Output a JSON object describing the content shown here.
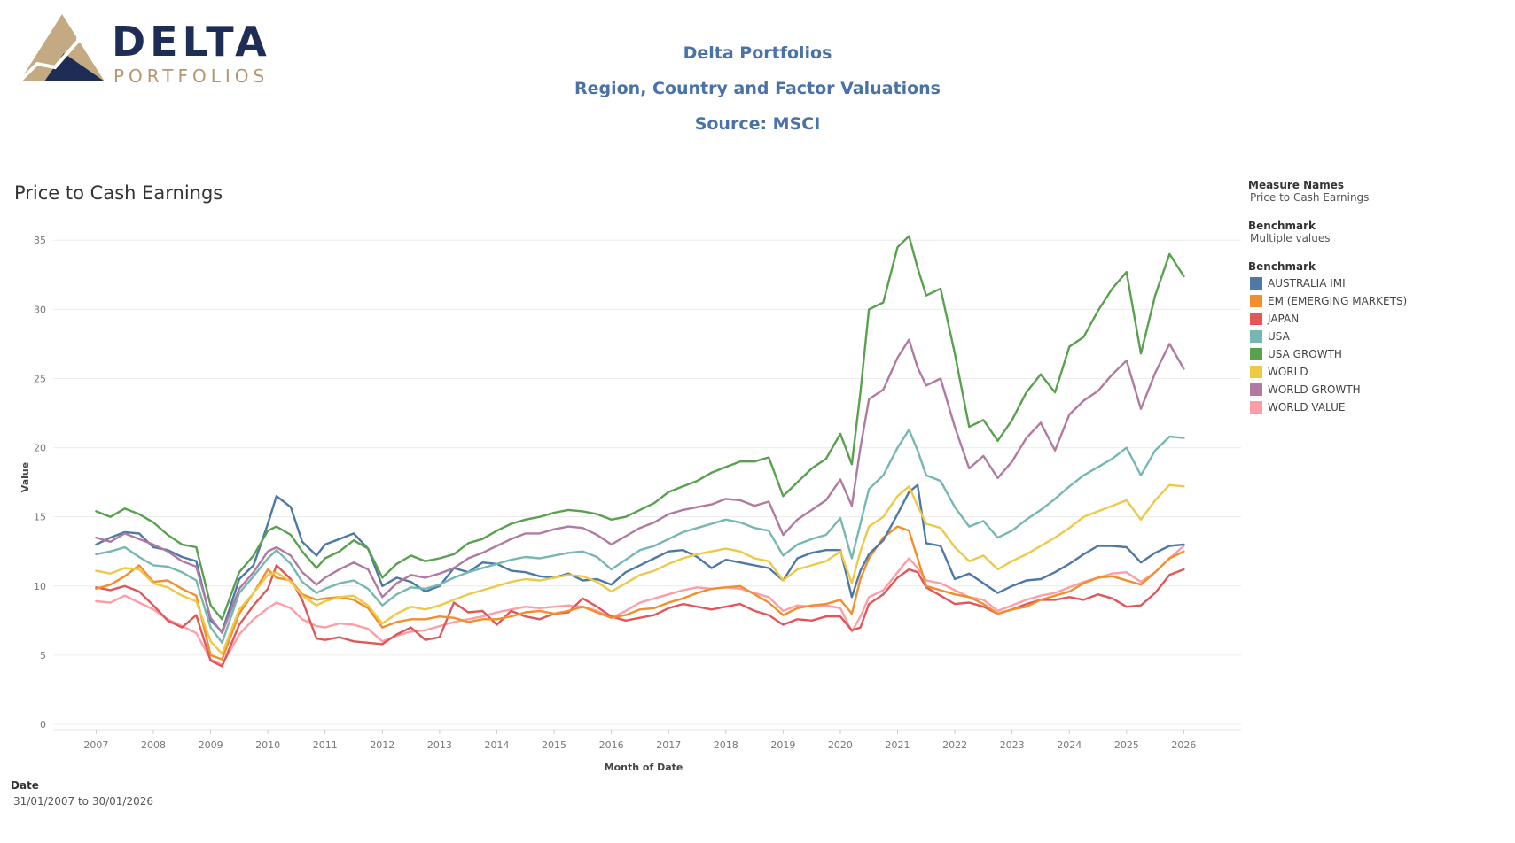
{
  "logo": {
    "word": "DELTA",
    "sub": "PORTFOLIOS"
  },
  "header": {
    "line1": "Delta Portfolios",
    "line2": "Region, Country and Factor Valuations",
    "line3": "Source: MSCI"
  },
  "legend": {
    "measure_names_label": "Measure Names",
    "measure_names_value": "Price to Cash Earnings",
    "benchmark_label": "Benchmark",
    "benchmark_value": "Multiple values",
    "benchmark_list_label": "Benchmark"
  },
  "date_filter": {
    "label": "Date",
    "value": "31/01/2007 to 30/01/2026"
  },
  "chart_data": {
    "type": "line",
    "title": "Price to Cash Earnings",
    "xlabel": "Month of Date",
    "ylabel": "Value",
    "ylim": [
      0,
      37
    ],
    "yticks": [
      0,
      5,
      10,
      15,
      20,
      25,
      30,
      35
    ],
    "xlim": [
      2006.25,
      2027.0
    ],
    "xticks": [
      "2007",
      "2008",
      "2009",
      "2010",
      "2011",
      "2012",
      "2013",
      "2014",
      "2015",
      "2016",
      "2017",
      "2018",
      "2019",
      "2020",
      "2021",
      "2022",
      "2023",
      "2024",
      "2025",
      "2026"
    ],
    "gridlines": "horizontal",
    "x": [
      2007.0,
      2007.25,
      2007.5,
      2007.75,
      2008.0,
      2008.25,
      2008.5,
      2008.75,
      2009.0,
      2009.2,
      2009.5,
      2009.75,
      2010.0,
      2010.15,
      2010.4,
      2010.6,
      2010.85,
      2011.0,
      2011.25,
      2011.5,
      2011.75,
      2012.0,
      2012.25,
      2012.5,
      2012.75,
      2013.0,
      2013.25,
      2013.5,
      2013.75,
      2014.0,
      2014.25,
      2014.5,
      2014.75,
      2015.0,
      2015.25,
      2015.5,
      2015.75,
      2016.0,
      2016.25,
      2016.5,
      2016.75,
      2017.0,
      2017.25,
      2017.5,
      2017.75,
      2018.0,
      2018.25,
      2018.5,
      2018.75,
      2019.0,
      2019.25,
      2019.5,
      2019.75,
      2020.0,
      2020.2,
      2020.35,
      2020.5,
      2020.75,
      2021.0,
      2021.2,
      2021.35,
      2021.5,
      2021.75,
      2022.0,
      2022.25,
      2022.5,
      2022.75,
      2023.0,
      2023.25,
      2023.5,
      2023.75,
      2024.0,
      2024.25,
      2024.5,
      2024.75,
      2025.0,
      2025.25,
      2025.5,
      2025.75,
      2026.0
    ],
    "series": [
      {
        "name": "AUSTRALIA IMI",
        "color": "#4e79a7",
        "values": [
          13.0,
          13.5,
          13.9,
          13.8,
          12.8,
          12.6,
          12.1,
          11.8,
          7.5,
          6.7,
          10.5,
          11.5,
          14.5,
          16.5,
          15.7,
          13.2,
          12.2,
          13.0,
          13.4,
          13.8,
          12.7,
          10.0,
          10.6,
          10.3,
          9.6,
          10.0,
          11.3,
          11.0,
          11.7,
          11.6,
          11.1,
          11.0,
          10.7,
          10.6,
          10.9,
          10.4,
          10.5,
          10.1,
          11.0,
          11.5,
          12.0,
          12.5,
          12.6,
          12.1,
          11.3,
          11.9,
          11.7,
          11.5,
          11.3,
          10.4,
          12.0,
          12.4,
          12.6,
          12.6,
          9.2,
          11.1,
          12.3,
          13.3,
          15.2,
          16.8,
          17.3,
          13.1,
          12.9,
          10.5,
          10.9,
          10.2,
          9.5,
          10.0,
          10.4,
          10.5,
          11.0,
          11.6,
          12.3,
          12.9,
          12.9,
          12.8,
          11.7,
          12.4,
          12.9,
          13.0
        ]
      },
      {
        "name": "EM (EMERGING MARKETS)",
        "color": "#f28e2b",
        "values": [
          9.8,
          10.1,
          10.7,
          11.5,
          10.3,
          10.4,
          9.8,
          9.3,
          5.0,
          4.7,
          8.0,
          9.5,
          11.2,
          10.6,
          10.4,
          9.4,
          9.0,
          9.1,
          9.2,
          9.0,
          8.4,
          7.0,
          7.4,
          7.6,
          7.6,
          7.8,
          7.7,
          7.4,
          7.6,
          7.6,
          7.8,
          8.1,
          8.2,
          8.0,
          8.2,
          8.5,
          8.1,
          7.7,
          7.9,
          8.3,
          8.4,
          8.8,
          9.1,
          9.5,
          9.8,
          9.9,
          10.0,
          9.4,
          8.8,
          7.9,
          8.4,
          8.6,
          8.7,
          9.0,
          8.0,
          10.5,
          12.0,
          13.5,
          14.3,
          14.0,
          12.0,
          10.0,
          9.7,
          9.4,
          9.2,
          8.7,
          8.0,
          8.3,
          8.5,
          9.0,
          9.3,
          9.6,
          10.2,
          10.6,
          10.7,
          10.4,
          10.1,
          11.0,
          12.0,
          12.5
        ]
      },
      {
        "name": "JAPAN",
        "color": "#e15759",
        "values": [
          9.9,
          9.7,
          10.0,
          9.6,
          8.6,
          7.5,
          7.0,
          7.9,
          4.6,
          4.2,
          7.2,
          8.6,
          9.8,
          11.5,
          10.5,
          9.0,
          6.2,
          6.1,
          6.3,
          6.0,
          5.9,
          5.8,
          6.5,
          7.0,
          6.1,
          6.3,
          8.8,
          8.1,
          8.2,
          7.2,
          8.2,
          7.8,
          7.6,
          8.0,
          8.1,
          9.1,
          8.5,
          7.8,
          7.5,
          7.7,
          7.9,
          8.4,
          8.7,
          8.5,
          8.3,
          8.5,
          8.7,
          8.2,
          7.9,
          7.2,
          7.6,
          7.5,
          7.8,
          7.8,
          6.8,
          7.0,
          8.7,
          9.4,
          10.6,
          11.2,
          11.0,
          9.9,
          9.3,
          8.7,
          8.8,
          8.5,
          8.0,
          8.3,
          8.7,
          9.0,
          9.0,
          9.2,
          9.0,
          9.4,
          9.1,
          8.5,
          8.6,
          9.5,
          10.8,
          11.2
        ]
      },
      {
        "name": "USA",
        "color": "#76b7b2",
        "values": [
          12.3,
          12.5,
          12.8,
          12.1,
          11.5,
          11.4,
          11.0,
          10.4,
          7.0,
          5.9,
          9.5,
          10.7,
          12.0,
          12.6,
          11.6,
          10.3,
          9.5,
          9.8,
          10.2,
          10.4,
          9.8,
          8.6,
          9.4,
          9.9,
          9.8,
          10.1,
          10.6,
          11.0,
          11.3,
          11.6,
          11.9,
          12.1,
          12.0,
          12.2,
          12.4,
          12.5,
          12.1,
          11.2,
          11.9,
          12.6,
          12.9,
          13.4,
          13.9,
          14.2,
          14.5,
          14.8,
          14.6,
          14.2,
          14.0,
          12.2,
          13.0,
          13.4,
          13.7,
          14.9,
          12.0,
          14.5,
          17.0,
          18.0,
          20.0,
          21.3,
          19.8,
          18.0,
          17.6,
          15.7,
          14.3,
          14.7,
          13.5,
          14.0,
          14.8,
          15.5,
          16.3,
          17.2,
          18.0,
          18.6,
          19.2,
          20.0,
          18.0,
          19.8,
          20.8,
          20.7
        ]
      },
      {
        "name": "USA GROWTH",
        "color": "#59a14f",
        "values": [
          15.4,
          15.0,
          15.6,
          15.2,
          14.6,
          13.7,
          13.0,
          12.8,
          8.6,
          7.6,
          11.0,
          12.2,
          14.0,
          14.3,
          13.7,
          12.5,
          11.3,
          12.0,
          12.5,
          13.3,
          12.7,
          10.6,
          11.6,
          12.2,
          11.8,
          12.0,
          12.3,
          13.1,
          13.4,
          14.0,
          14.5,
          14.8,
          15.0,
          15.3,
          15.5,
          15.4,
          15.2,
          14.8,
          15.0,
          15.5,
          16.0,
          16.8,
          17.2,
          17.6,
          18.2,
          18.6,
          19.0,
          19.0,
          19.3,
          16.5,
          17.5,
          18.5,
          19.2,
          21.0,
          18.8,
          24.0,
          30.0,
          30.5,
          34.5,
          35.3,
          33.0,
          31.0,
          31.5,
          26.8,
          21.5,
          22.0,
          20.5,
          22.0,
          24.0,
          25.3,
          24.0,
          27.3,
          28.0,
          29.9,
          31.5,
          32.7,
          26.8,
          31.0,
          34.0,
          32.4
        ]
      },
      {
        "name": "WORLD",
        "color": "#edc948",
        "values": [
          11.1,
          10.9,
          11.3,
          11.2,
          10.2,
          9.9,
          9.3,
          8.9,
          6.0,
          5.1,
          8.3,
          9.5,
          10.8,
          11.0,
          10.3,
          9.3,
          8.6,
          8.9,
          9.2,
          9.3,
          8.6,
          7.3,
          8.0,
          8.5,
          8.3,
          8.6,
          9.0,
          9.4,
          9.7,
          10.0,
          10.3,
          10.5,
          10.4,
          10.6,
          10.8,
          10.7,
          10.3,
          9.6,
          10.2,
          10.8,
          11.1,
          11.6,
          12.0,
          12.3,
          12.5,
          12.7,
          12.5,
          12.0,
          11.8,
          10.4,
          11.2,
          11.5,
          11.8,
          12.5,
          10.2,
          12.5,
          14.3,
          15.0,
          16.5,
          17.2,
          15.8,
          14.5,
          14.2,
          12.8,
          11.8,
          12.2,
          11.2,
          11.8,
          12.3,
          12.9,
          13.5,
          14.2,
          15.0,
          15.4,
          15.8,
          16.2,
          14.8,
          16.2,
          17.3,
          17.2
        ]
      },
      {
        "name": "WORLD GROWTH",
        "color": "#b07aa1",
        "values": [
          13.5,
          13.2,
          13.8,
          13.4,
          13.0,
          12.5,
          11.8,
          11.4,
          7.7,
          6.6,
          9.8,
          11.0,
          12.5,
          12.8,
          12.2,
          11.0,
          10.1,
          10.6,
          11.2,
          11.7,
          11.2,
          9.2,
          10.2,
          10.8,
          10.6,
          10.9,
          11.3,
          12.0,
          12.4,
          12.9,
          13.4,
          13.8,
          13.8,
          14.1,
          14.3,
          14.2,
          13.7,
          13.0,
          13.6,
          14.2,
          14.6,
          15.2,
          15.5,
          15.7,
          15.9,
          16.3,
          16.2,
          15.8,
          16.1,
          13.7,
          14.8,
          15.5,
          16.2,
          17.7,
          15.8,
          20.0,
          23.5,
          24.2,
          26.5,
          27.8,
          25.8,
          24.5,
          25.0,
          21.5,
          18.5,
          19.4,
          17.8,
          19.0,
          20.7,
          21.8,
          19.8,
          22.4,
          23.4,
          24.1,
          25.3,
          26.3,
          22.8,
          25.4,
          27.5,
          25.7
        ]
      },
      {
        "name": "WORLD VALUE",
        "color": "#ff9da7",
        "values": [
          8.9,
          8.8,
          9.3,
          8.8,
          8.3,
          7.6,
          7.1,
          6.6,
          4.7,
          4.3,
          6.5,
          7.6,
          8.4,
          8.8,
          8.4,
          7.6,
          7.1,
          7.0,
          7.3,
          7.2,
          6.9,
          6.0,
          6.4,
          6.7,
          6.8,
          7.1,
          7.4,
          7.6,
          7.8,
          8.1,
          8.3,
          8.5,
          8.4,
          8.5,
          8.6,
          8.5,
          8.2,
          7.7,
          8.2,
          8.8,
          9.1,
          9.4,
          9.7,
          9.9,
          9.8,
          9.9,
          9.8,
          9.5,
          9.2,
          8.2,
          8.6,
          8.5,
          8.6,
          8.4,
          6.7,
          7.8,
          9.2,
          9.7,
          11.0,
          12.0,
          11.3,
          10.4,
          10.2,
          9.7,
          9.2,
          9.0,
          8.2,
          8.6,
          9.0,
          9.3,
          9.5,
          9.9,
          10.3,
          10.6,
          10.9,
          11.0,
          10.3,
          11.0,
          12.0,
          12.9
        ]
      }
    ]
  }
}
